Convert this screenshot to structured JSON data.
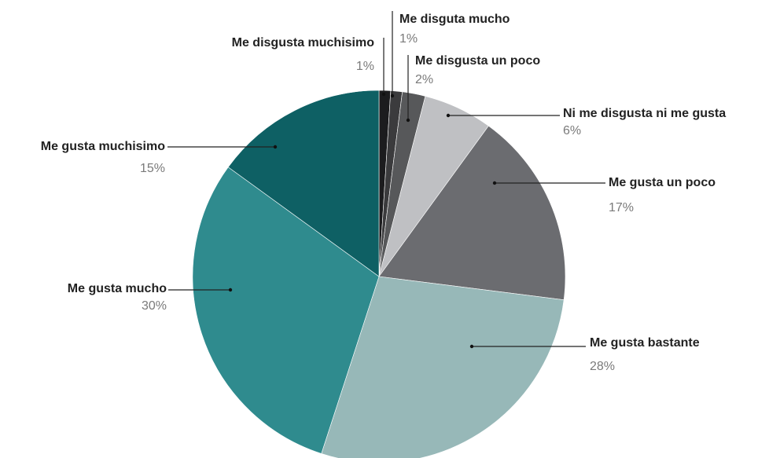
{
  "chart_data": {
    "type": "pie",
    "categories": [
      "Me disgusta muchisimo",
      "Me disguta mucho",
      "Me disgusta un poco",
      "Ni me disgusta ni me gusta",
      "Me gusta un poco",
      "Me gusta bastante",
      "Me gusta mucho",
      "Me gusta muchisimo"
    ],
    "values": [
      1,
      1,
      2,
      6,
      17,
      28,
      30,
      15
    ],
    "value_labels": [
      "1%",
      "1%",
      "2%",
      "6%",
      "17%",
      "28%",
      "30%",
      "15%"
    ],
    "colors": [
      "#1c1c1e",
      "#3b3b3d",
      "#57585a",
      "#bfc0c3",
      "#6b6c70",
      "#97b8b8",
      "#2f8b8e",
      "#0e6064"
    ]
  }
}
